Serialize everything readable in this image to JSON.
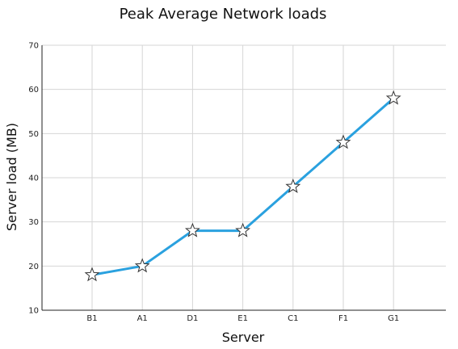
{
  "chart_data": {
    "type": "line",
    "title": "Peak Average Network loads",
    "xlabel": "Server",
    "ylabel": "Server load (MB)",
    "categories": [
      "B1",
      "A1",
      "D1",
      "E1",
      "C1",
      "F1",
      "G1"
    ],
    "values": [
      18,
      20,
      28,
      28,
      38,
      48,
      58
    ],
    "ylim": [
      10,
      70
    ],
    "yticks": [
      10,
      20,
      30,
      40,
      50,
      60,
      70
    ],
    "grid": true,
    "legend": "none",
    "marker": "star",
    "line_color": "#2aa1df",
    "marker_fill": "#ffffff",
    "marker_stroke": "#333333"
  }
}
